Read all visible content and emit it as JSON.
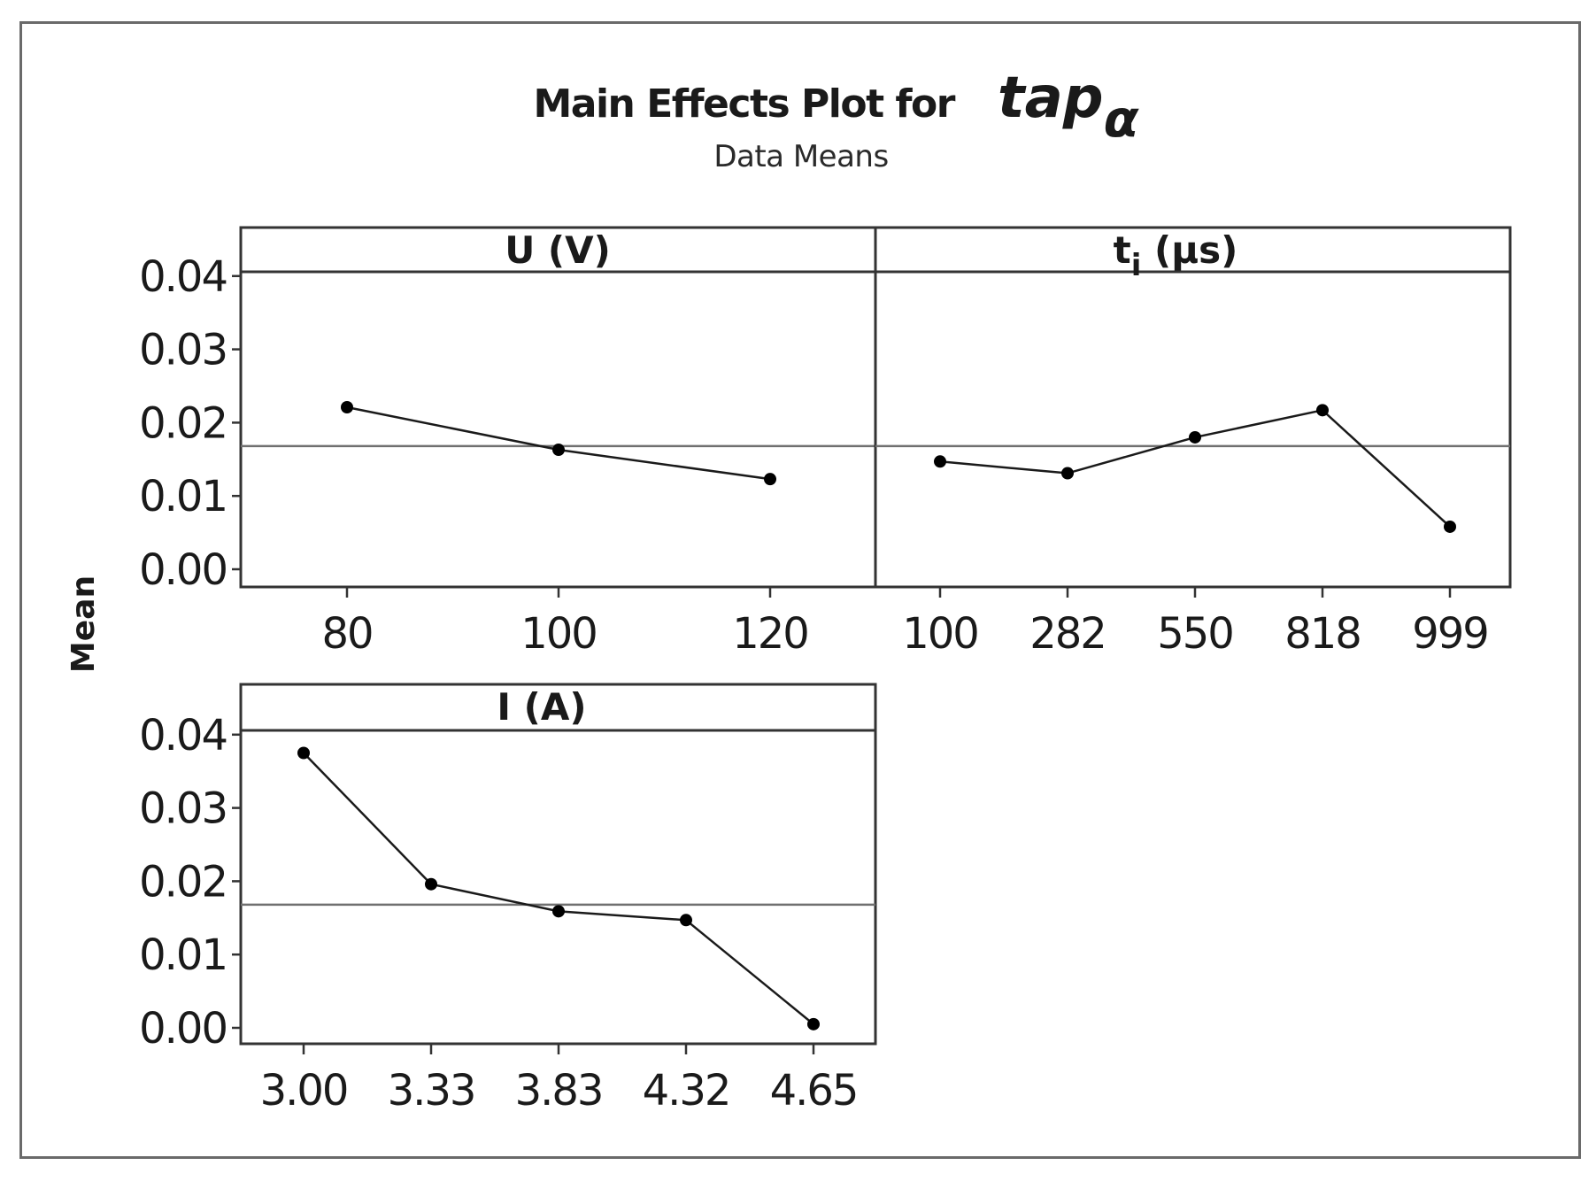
{
  "chart_data": {
    "type": "line",
    "title": "Main Effects Plot for",
    "title_symbol": "tap",
    "title_subscript": "α",
    "subtitle": "Data Means",
    "ylabel": "Mean",
    "ylim": [
      -0.0023,
      0.0463
    ],
    "yticks": [
      "0.00",
      "0.01",
      "0.02",
      "0.03",
      "0.04"
    ],
    "ytick_values": [
      0.0,
      0.01,
      0.02,
      0.03,
      0.04
    ],
    "reference_mean": 0.0168,
    "colors": {
      "line": "#1a1a1a",
      "marker": "#000000",
      "mean_line": "#707070",
      "frame": "#333333"
    },
    "panels": [
      {
        "id": "U",
        "label_main": "U (V)",
        "label_sub": "",
        "label_unit": "",
        "categories": [
          "80",
          "100",
          "120"
        ],
        "values": [
          0.0221,
          0.0163,
          0.0123
        ]
      },
      {
        "id": "ti",
        "label_main": "t",
        "label_sub": "i",
        "label_unit": " (µs)",
        "categories": [
          "100",
          "282",
          "550",
          "818",
          "999"
        ],
        "values": [
          0.0147,
          0.0131,
          0.018,
          0.0217,
          0.0058
        ]
      },
      {
        "id": "I",
        "label_main": "I (A)",
        "label_sub": "",
        "label_unit": "",
        "categories": [
          "3.00",
          "3.33",
          "3.83",
          "4.32",
          "4.65"
        ],
        "values": [
          0.0375,
          0.0196,
          0.0159,
          0.0147,
          0.0005
        ]
      }
    ]
  }
}
